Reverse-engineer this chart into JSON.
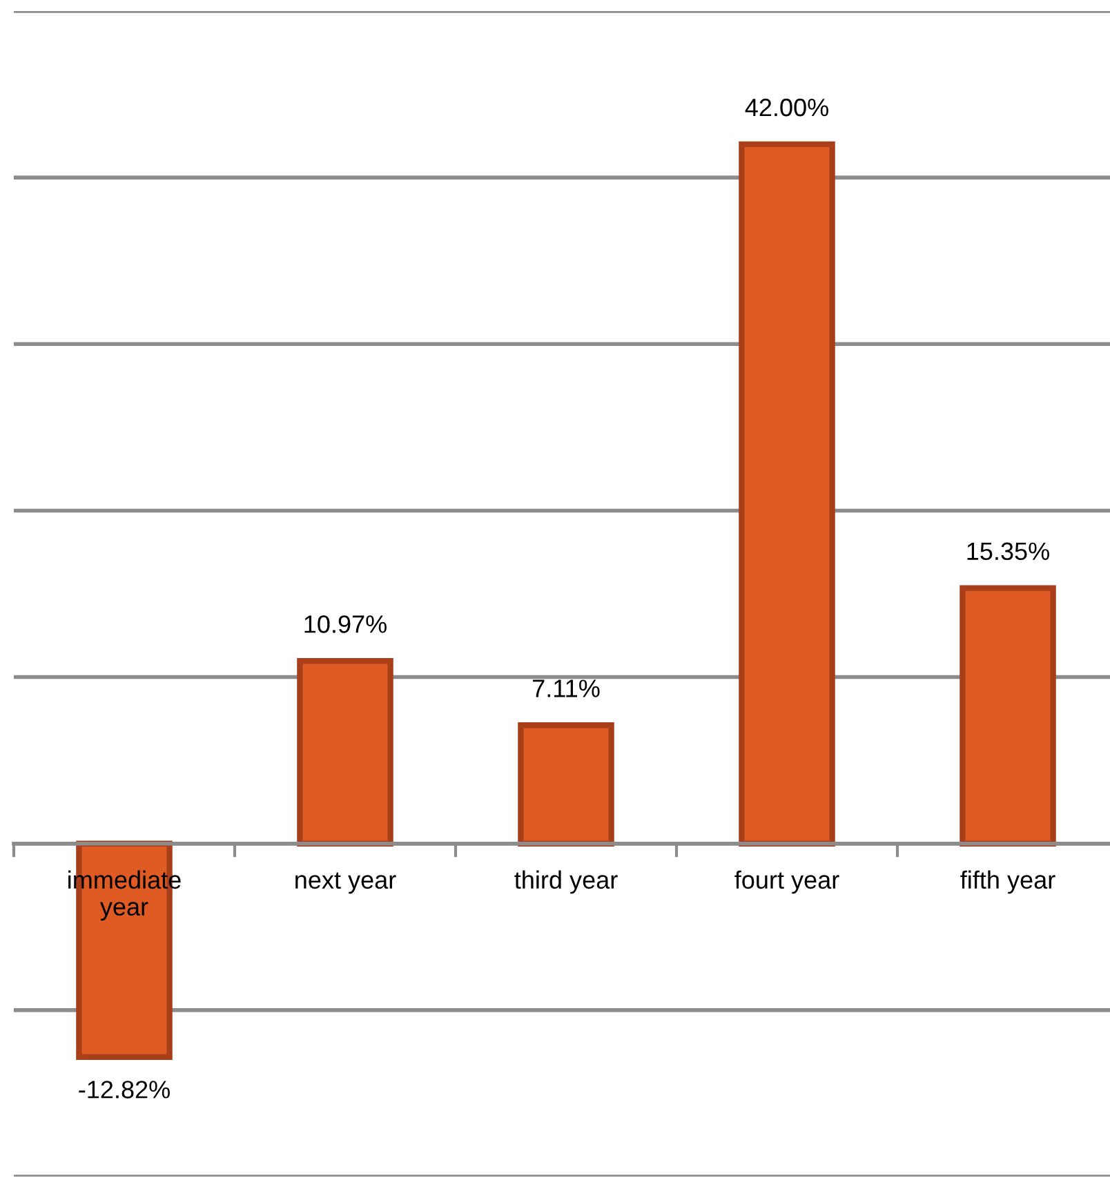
{
  "chart_data": {
    "type": "bar",
    "categories": [
      "immediate\nyear",
      "next year",
      "third year",
      "fourt year",
      "fifth year"
    ],
    "values": [
      -12.82,
      10.97,
      7.11,
      42.0,
      15.35
    ],
    "value_labels": [
      "-12.82%",
      "10.97%",
      "7.11%",
      "42.00%",
      "15.35%"
    ],
    "color": "#e05a24",
    "ylim": [
      -20,
      50
    ],
    "yticks": [
      {
        "value": -20,
        "label": null
      },
      {
        "value": -10,
        "label": null
      },
      {
        "value": 0,
        "label": null
      },
      {
        "value": 10,
        "label": null
      },
      {
        "value": 20,
        "label": null
      },
      {
        "value": 30,
        "label": null
      },
      {
        "value": 40,
        "label": null
      },
      {
        "value": 50,
        "label": null
      }
    ],
    "grid": "y",
    "tick_labels": "x",
    "legend": false
  }
}
